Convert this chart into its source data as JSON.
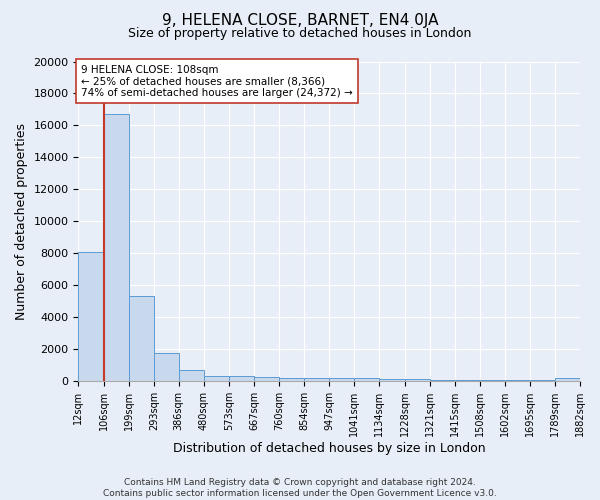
{
  "title": "9, HELENA CLOSE, BARNET, EN4 0JA",
  "subtitle": "Size of property relative to detached houses in London",
  "xlabel": "Distribution of detached houses by size in London",
  "ylabel": "Number of detached properties",
  "bar_color": "#c9d9ed",
  "bar_edge_color": "#5b9bd5",
  "annotation_line_color": "#c0392b",
  "annotation_box_edge": "#c0392b",
  "annotation_text_lines": [
    "9 HELENA CLOSE: 108sqm",
    "← 25% of detached houses are smaller (8,366)",
    "74% of semi-detached houses are larger (24,372) →"
  ],
  "property_size_sqm": 108,
  "bin_edges": [
    12,
    106,
    199,
    293,
    386,
    480,
    573,
    667,
    760,
    854,
    947,
    1041,
    1134,
    1228,
    1321,
    1415,
    1508,
    1602,
    1695,
    1789,
    1882
  ],
  "bin_counts": [
    8100,
    16700,
    5300,
    1750,
    700,
    350,
    300,
    250,
    200,
    200,
    175,
    175,
    150,
    125,
    100,
    100,
    75,
    100,
    50,
    175
  ],
  "ylim": [
    0,
    20000
  ],
  "yticks": [
    0,
    2000,
    4000,
    6000,
    8000,
    10000,
    12000,
    14000,
    16000,
    18000,
    20000
  ],
  "tick_labels": [
    "12sqm",
    "106sqm",
    "199sqm",
    "293sqm",
    "386sqm",
    "480sqm",
    "573sqm",
    "667sqm",
    "760sqm",
    "854sqm",
    "947sqm",
    "1041sqm",
    "1134sqm",
    "1228sqm",
    "1321sqm",
    "1415sqm",
    "1508sqm",
    "1602sqm",
    "1695sqm",
    "1789sqm",
    "1882sqm"
  ],
  "footer": "Contains HM Land Registry data © Crown copyright and database right 2024.\nContains public sector information licensed under the Open Government Licence v3.0.",
  "bg_color": "#e8eef7",
  "plot_bg_color": "#e8eef7",
  "title_fontsize": 11,
  "subtitle_fontsize": 9,
  "ylabel_fontsize": 9,
  "xlabel_fontsize": 9,
  "ytick_fontsize": 8,
  "xtick_fontsize": 7
}
